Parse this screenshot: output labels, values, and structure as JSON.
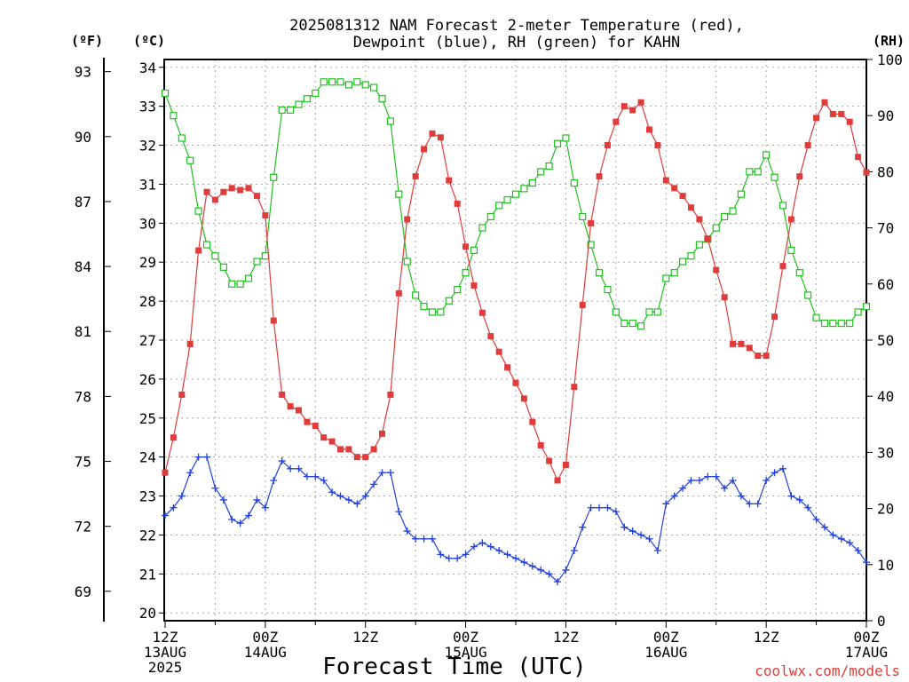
{
  "title_line1": "2025081312 NAM Forecast 2-meter Temperature (red),",
  "title_line2": "Dewpoint (blue), RH (green) for KAHN",
  "unit_f": "(ºF)",
  "unit_c": "(ºC)",
  "unit_rh": "(RH)",
  "xlabel": "Forecast Time (UTC)",
  "credit": "coolwx.com/models",
  "colors": {
    "temperature": "#e03c3c",
    "dewpoint": "#2040e0",
    "rh": "#20c020",
    "grid": "#aaaaaa"
  },
  "chart_data": {
    "type": "line",
    "title": "2025081312 NAM Forecast 2-meter Temperature (red), Dewpoint (blue), RH (green) for KAHN",
    "xlabel": "Forecast Time (UTC)",
    "grid": true,
    "x_range_hours": [
      0,
      84
    ],
    "x_ticks": [
      {
        "h": 0,
        "lines": [
          "12Z",
          "13AUG",
          "2025"
        ]
      },
      {
        "h": 12,
        "lines": [
          "00Z",
          "14AUG"
        ]
      },
      {
        "h": 24,
        "lines": [
          "12Z"
        ]
      },
      {
        "h": 36,
        "lines": [
          "00Z",
          "15AUG"
        ]
      },
      {
        "h": 48,
        "lines": [
          "12Z"
        ]
      },
      {
        "h": 60,
        "lines": [
          "00Z",
          "16AUG"
        ]
      },
      {
        "h": 72,
        "lines": [
          "12Z"
        ]
      },
      {
        "h": 84,
        "lines": [
          "00Z",
          "17AUG"
        ]
      }
    ],
    "y_left_celsius": {
      "range": [
        19.8,
        34.2
      ],
      "ticks": [
        20,
        21,
        22,
        23,
        24,
        25,
        26,
        27,
        28,
        29,
        30,
        31,
        32,
        33,
        34
      ]
    },
    "y_left_fahrenheit": {
      "ticks": [
        69,
        72,
        75,
        78,
        81,
        84,
        87,
        90,
        93
      ]
    },
    "y_right_rh": {
      "range": [
        0,
        100
      ],
      "ticks": [
        0,
        10,
        20,
        30,
        40,
        50,
        60,
        70,
        80,
        90,
        100
      ]
    },
    "series": [
      {
        "name": "Temperature",
        "units": "C",
        "marker": "filled-square",
        "values": [
          [
            0,
            23.6
          ],
          [
            1,
            24.5
          ],
          [
            2,
            25.6
          ],
          [
            3,
            26.9
          ],
          [
            4,
            29.3
          ],
          [
            5,
            30.8
          ],
          [
            6,
            30.6
          ],
          [
            7,
            30.8
          ],
          [
            8,
            30.9
          ],
          [
            9,
            30.85
          ],
          [
            10,
            30.9
          ],
          [
            11,
            30.7
          ],
          [
            12,
            30.2
          ],
          [
            13,
            27.5
          ],
          [
            14,
            25.6
          ],
          [
            15,
            25.3
          ],
          [
            16,
            25.2
          ],
          [
            17,
            24.9
          ],
          [
            18,
            24.8
          ],
          [
            19,
            24.5
          ],
          [
            20,
            24.4
          ],
          [
            21,
            24.2
          ],
          [
            22,
            24.2
          ],
          [
            23,
            24.0
          ],
          [
            24,
            24.0
          ],
          [
            25,
            24.2
          ],
          [
            26,
            24.6
          ],
          [
            27,
            25.6
          ],
          [
            28,
            28.2
          ],
          [
            29,
            30.1
          ],
          [
            30,
            31.2
          ],
          [
            31,
            31.9
          ],
          [
            32,
            32.3
          ],
          [
            33,
            32.2
          ],
          [
            34,
            31.1
          ],
          [
            35,
            30.5
          ],
          [
            36,
            29.4
          ],
          [
            37,
            28.4
          ],
          [
            38,
            27.7
          ],
          [
            39,
            27.1
          ],
          [
            40,
            26.7
          ],
          [
            41,
            26.3
          ],
          [
            42,
            25.9
          ],
          [
            43,
            25.5
          ],
          [
            44,
            24.9
          ],
          [
            45,
            24.3
          ],
          [
            46,
            23.9
          ],
          [
            47,
            23.4
          ],
          [
            48,
            23.8
          ],
          [
            49,
            25.8
          ],
          [
            50,
            27.9
          ],
          [
            51,
            30.0
          ],
          [
            52,
            31.2
          ],
          [
            53,
            32.0
          ],
          [
            54,
            32.6
          ],
          [
            55,
            33.0
          ],
          [
            56,
            32.9
          ],
          [
            57,
            33.1
          ],
          [
            58,
            32.4
          ],
          [
            59,
            32.0
          ],
          [
            60,
            31.1
          ],
          [
            61,
            30.9
          ],
          [
            62,
            30.7
          ],
          [
            63,
            30.4
          ],
          [
            64,
            30.1
          ],
          [
            65,
            29.6
          ],
          [
            66,
            28.8
          ],
          [
            67,
            28.1
          ],
          [
            68,
            26.9
          ],
          [
            69,
            26.9
          ],
          [
            70,
            26.8
          ],
          [
            71,
            26.6
          ],
          [
            72,
            26.6
          ],
          [
            73,
            27.6
          ],
          [
            74,
            28.9
          ],
          [
            75,
            30.1
          ],
          [
            76,
            31.2
          ],
          [
            77,
            32.0
          ],
          [
            78,
            32.7
          ],
          [
            79,
            33.1
          ],
          [
            80,
            32.8
          ],
          [
            81,
            32.8
          ],
          [
            82,
            32.6
          ],
          [
            83,
            31.7
          ],
          [
            84,
            31.3
          ]
        ]
      },
      {
        "name": "Dewpoint",
        "units": "C",
        "marker": "plus",
        "values": [
          [
            0,
            22.5
          ],
          [
            1,
            22.7
          ],
          [
            2,
            23.0
          ],
          [
            3,
            23.6
          ],
          [
            4,
            24.0
          ],
          [
            5,
            24.0
          ],
          [
            6,
            23.2
          ],
          [
            7,
            22.9
          ],
          [
            8,
            22.4
          ],
          [
            9,
            22.3
          ],
          [
            10,
            22.5
          ],
          [
            11,
            22.9
          ],
          [
            12,
            22.7
          ],
          [
            13,
            23.4
          ],
          [
            14,
            23.9
          ],
          [
            15,
            23.7
          ],
          [
            16,
            23.7
          ],
          [
            17,
            23.5
          ],
          [
            18,
            23.5
          ],
          [
            19,
            23.4
          ],
          [
            20,
            23.1
          ],
          [
            21,
            23.0
          ],
          [
            22,
            22.9
          ],
          [
            23,
            22.8
          ],
          [
            24,
            23.0
          ],
          [
            25,
            23.3
          ],
          [
            26,
            23.6
          ],
          [
            27,
            23.6
          ],
          [
            28,
            22.6
          ],
          [
            29,
            22.1
          ],
          [
            30,
            21.9
          ],
          [
            31,
            21.9
          ],
          [
            32,
            21.9
          ],
          [
            33,
            21.5
          ],
          [
            34,
            21.4
          ],
          [
            35,
            21.4
          ],
          [
            36,
            21.5
          ],
          [
            37,
            21.7
          ],
          [
            38,
            21.8
          ],
          [
            39,
            21.7
          ],
          [
            40,
            21.6
          ],
          [
            41,
            21.5
          ],
          [
            42,
            21.4
          ],
          [
            43,
            21.3
          ],
          [
            44,
            21.2
          ],
          [
            45,
            21.1
          ],
          [
            46,
            21.0
          ],
          [
            47,
            20.8
          ],
          [
            48,
            21.1
          ],
          [
            49,
            21.6
          ],
          [
            50,
            22.2
          ],
          [
            51,
            22.7
          ],
          [
            52,
            22.7
          ],
          [
            53,
            22.7
          ],
          [
            54,
            22.6
          ],
          [
            55,
            22.2
          ],
          [
            56,
            22.1
          ],
          [
            57,
            22.0
          ],
          [
            58,
            21.9
          ],
          [
            59,
            21.6
          ],
          [
            60,
            22.8
          ],
          [
            61,
            23.0
          ],
          [
            62,
            23.2
          ],
          [
            63,
            23.4
          ],
          [
            64,
            23.4
          ],
          [
            65,
            23.5
          ],
          [
            66,
            23.5
          ],
          [
            67,
            23.2
          ],
          [
            68,
            23.4
          ],
          [
            69,
            23.0
          ],
          [
            70,
            22.8
          ],
          [
            71,
            22.8
          ],
          [
            72,
            23.4
          ],
          [
            73,
            23.6
          ],
          [
            74,
            23.7
          ],
          [
            75,
            23.0
          ],
          [
            76,
            22.9
          ],
          [
            77,
            22.7
          ],
          [
            78,
            22.4
          ],
          [
            79,
            22.2
          ],
          [
            80,
            22.0
          ],
          [
            81,
            21.9
          ],
          [
            82,
            21.8
          ],
          [
            83,
            21.6
          ],
          [
            84,
            21.3
          ]
        ]
      },
      {
        "name": "RH",
        "units": "%",
        "axis": "right",
        "marker": "open-square",
        "values": [
          [
            0,
            94
          ],
          [
            1,
            90
          ],
          [
            2,
            86
          ],
          [
            3,
            82
          ],
          [
            4,
            73
          ],
          [
            5,
            67
          ],
          [
            6,
            65
          ],
          [
            7,
            63
          ],
          [
            8,
            60
          ],
          [
            9,
            60
          ],
          [
            10,
            61
          ],
          [
            11,
            64
          ],
          [
            12,
            65
          ],
          [
            13,
            79
          ],
          [
            14,
            91
          ],
          [
            15,
            91
          ],
          [
            16,
            92
          ],
          [
            17,
            93
          ],
          [
            18,
            94
          ],
          [
            19,
            96
          ],
          [
            20,
            96
          ],
          [
            21,
            96
          ],
          [
            22,
            95.5
          ],
          [
            23,
            96
          ],
          [
            24,
            95.5
          ],
          [
            25,
            95
          ],
          [
            26,
            93
          ],
          [
            27,
            89
          ],
          [
            28,
            76
          ],
          [
            29,
            64
          ],
          [
            30,
            58
          ],
          [
            31,
            56
          ],
          [
            32,
            55
          ],
          [
            33,
            55
          ],
          [
            34,
            57
          ],
          [
            35,
            59
          ],
          [
            36,
            62
          ],
          [
            37,
            66
          ],
          [
            38,
            70
          ],
          [
            39,
            72
          ],
          [
            40,
            74
          ],
          [
            41,
            75
          ],
          [
            42,
            76
          ],
          [
            43,
            77
          ],
          [
            44,
            78
          ],
          [
            45,
            80
          ],
          [
            46,
            81
          ],
          [
            47,
            85
          ],
          [
            48,
            86
          ],
          [
            49,
            78
          ],
          [
            50,
            72
          ],
          [
            51,
            67
          ],
          [
            52,
            62
          ],
          [
            53,
            59
          ],
          [
            54,
            55
          ],
          [
            55,
            53
          ],
          [
            56,
            53
          ],
          [
            57,
            52.5
          ],
          [
            58,
            55
          ],
          [
            59,
            55
          ],
          [
            60,
            61
          ],
          [
            61,
            62
          ],
          [
            62,
            64
          ],
          [
            63,
            65
          ],
          [
            64,
            67
          ],
          [
            65,
            68
          ],
          [
            66,
            70
          ],
          [
            67,
            72
          ],
          [
            68,
            73
          ],
          [
            69,
            76
          ],
          [
            70,
            80
          ],
          [
            71,
            80
          ],
          [
            72,
            83
          ],
          [
            73,
            79
          ],
          [
            74,
            74
          ],
          [
            75,
            66
          ],
          [
            76,
            62
          ],
          [
            77,
            58
          ],
          [
            78,
            54
          ],
          [
            79,
            53
          ],
          [
            80,
            53
          ],
          [
            81,
            53
          ],
          [
            82,
            53
          ],
          [
            83,
            55
          ],
          [
            84,
            56
          ]
        ]
      }
    ]
  }
}
